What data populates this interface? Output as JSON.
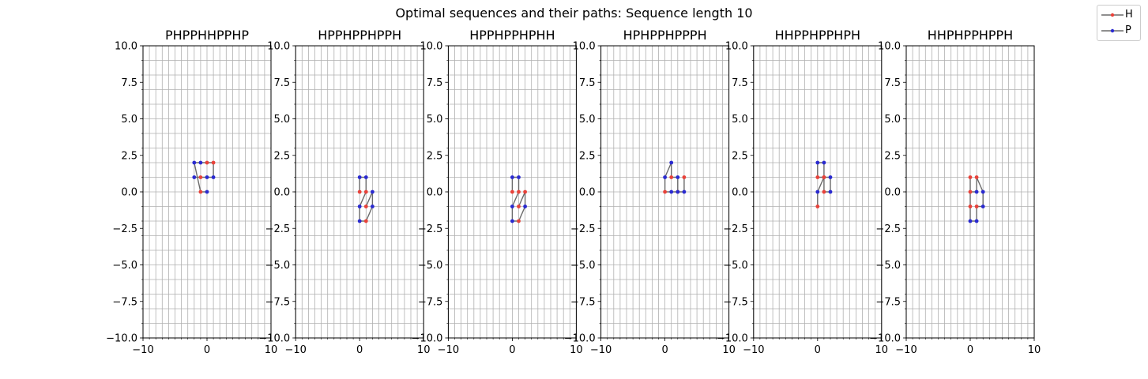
{
  "figure_title": "Optimal sequences and their paths: Sequence length 10",
  "colors": {
    "H": "#e8423a",
    "P": "#2a2ad0",
    "line": "#6a6a6a",
    "grid": "#b0b0b0"
  },
  "legend": [
    {
      "label": "H",
      "color": "#e8423a"
    },
    {
      "label": "P",
      "color": "#2a2ad0"
    }
  ],
  "chart_data": [
    {
      "type": "line",
      "title": "PHPPHHPPHP",
      "sequence": "PHPPHHPPHP",
      "xlim": [
        -10,
        10
      ],
      "ylim": [
        -10,
        10
      ],
      "grid": true,
      "x": [
        -2,
        -1,
        0,
        1,
        1,
        0,
        -1,
        -2,
        -1,
        0
      ],
      "y": [
        1,
        1,
        1,
        1,
        2,
        2,
        2,
        2,
        0,
        0
      ]
    },
    {
      "type": "line",
      "title": "HPPHPPHPPH",
      "sequence": "HPPHPPHPPH",
      "xlim": [
        -10,
        10
      ],
      "ylim": [
        -10,
        10
      ],
      "grid": true,
      "x": [
        0,
        0,
        1,
        1,
        0,
        0,
        1,
        2,
        2,
        1
      ],
      "y": [
        0,
        1,
        1,
        0,
        -1,
        -2,
        -2,
        -1,
        0,
        -1
      ]
    },
    {
      "type": "line",
      "title": "HPPHPPHPHH",
      "sequence": "HPPHPPHPHH",
      "xlim": [
        -10,
        10
      ],
      "ylim": [
        -10,
        10
      ],
      "grid": true,
      "x": [
        0,
        0,
        1,
        1,
        0,
        0,
        1,
        2,
        2,
        1
      ],
      "y": [
        0,
        1,
        1,
        0,
        -1,
        -2,
        -2,
        -1,
        0,
        -1
      ]
    },
    {
      "type": "line",
      "title": "HPHPPHPPPH",
      "sequence": "HPHPPHPPPH",
      "xlim": [
        -10,
        10
      ],
      "ylim": [
        -10,
        10
      ],
      "grid": true,
      "x": [
        2,
        2,
        1,
        1,
        0,
        0,
        1,
        2,
        3,
        3
      ],
      "y": [
        0,
        1,
        1,
        2,
        1,
        0,
        0,
        0,
        0,
        1
      ]
    },
    {
      "type": "line",
      "title": "HHPPHPPHPH",
      "sequence": "HHPPHPPHPH",
      "xlim": [
        -10,
        10
      ],
      "ylim": [
        -10,
        10
      ],
      "grid": true,
      "x": [
        1,
        0,
        0,
        1,
        1,
        2,
        2,
        1,
        0,
        0
      ],
      "y": [
        1,
        1,
        2,
        2,
        0,
        0,
        1,
        1,
        0,
        -1
      ]
    },
    {
      "type": "line",
      "title": "HHPHPPHPPH",
      "sequence": "HHPHPPHPPH",
      "xlim": [
        -10,
        10
      ],
      "ylim": [
        -10,
        10
      ],
      "grid": true,
      "x": [
        0,
        0,
        1,
        1,
        2,
        2,
        1,
        1,
        0,
        0
      ],
      "y": [
        -1,
        0,
        0,
        1,
        0,
        -1,
        -1,
        -2,
        -2,
        1
      ]
    }
  ]
}
